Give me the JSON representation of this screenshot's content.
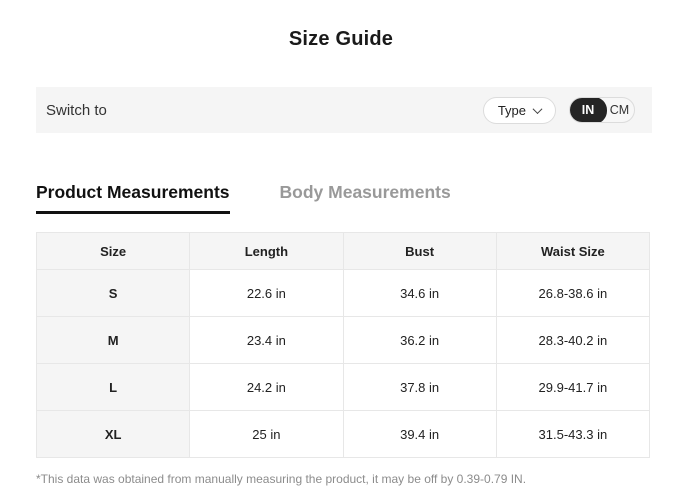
{
  "page": {
    "title": "Size Guide"
  },
  "switch_bar": {
    "label": "Switch to",
    "type_button": {
      "label": "Type",
      "icon": "chevron-down-icon"
    },
    "unit_toggle": {
      "selected": "IN",
      "options": [
        {
          "label": "IN",
          "selected": true
        },
        {
          "label": "CM",
          "selected": false
        }
      ]
    }
  },
  "tabs": [
    {
      "label": "Product Measurements",
      "active": true
    },
    {
      "label": "Body Measurements",
      "active": false
    }
  ],
  "table": {
    "headers": [
      "Size",
      "Length",
      "Bust",
      "Waist Size"
    ],
    "rows": [
      [
        "S",
        "22.6 in",
        "34.6 in",
        "26.8-38.6 in"
      ],
      [
        "M",
        "23.4 in",
        "36.2 in",
        "28.3-40.2 in"
      ],
      [
        "L",
        "24.2 in",
        "37.8 in",
        "29.9-41.7 in"
      ],
      [
        "XL",
        "25 in",
        "39.4 in",
        "31.5-43.3 in"
      ]
    ]
  },
  "footnote": "*This data was obtained from manually measuring the product, it may be off by 0.39-0.79 IN.",
  "colors": {
    "toggle_selected_bg": "#252525",
    "toggle_selected_text": "#ffffff",
    "bar_bg": "#f5f5f5",
    "table_header_bg": "#f5f5f5",
    "tab_active": "#111111",
    "tab_inactive": "#999999",
    "border": "#e7e7e7",
    "footnote_text": "#8c8c8c"
  }
}
